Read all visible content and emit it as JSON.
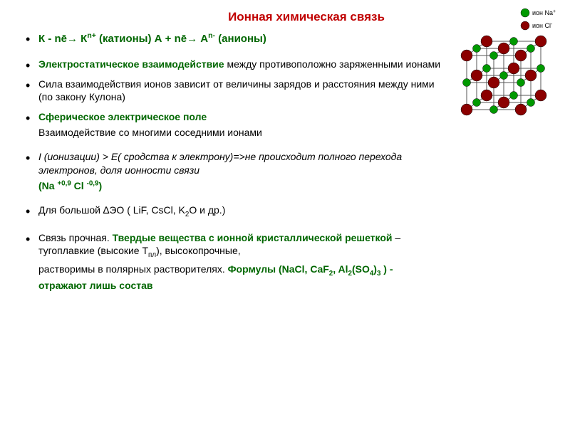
{
  "title": {
    "text": "Ионная химическая связь",
    "color": "#c00000",
    "fontsize": 17
  },
  "lines": [
    {
      "segments": [
        {
          "text": "К - nē→ К",
          "color": "#006600",
          "bold": true
        },
        {
          "text": "n+",
          "color": "#006600",
          "bold": true,
          "sup": true
        },
        {
          "text": " (катионы)",
          "color": "#006600",
          "bold": true
        },
        {
          "text": "        А + nē→ А",
          "color": "#006600",
          "bold": true
        },
        {
          "text": "n-",
          "color": "#006600",
          "bold": true,
          "sup": true
        },
        {
          "text": " (анионы)",
          "color": "#006600",
          "bold": true
        }
      ],
      "bullet": true,
      "fontsize": 15
    },
    {
      "spacer": true
    },
    {
      "segments": [
        {
          "text": "Электростатическое взаимодействие",
          "color": "#006600",
          "bold": true
        },
        {
          "text": " между противоположно заряженными ионами",
          "color": "#000000"
        }
      ],
      "bullet": true,
      "fontsize": 14
    },
    {
      "spacer": true,
      "small": true
    },
    {
      "segments": [
        {
          "text": "Сила взаимодействия ионов зависит от величины зарядов и расстояния между ними (по закону Кулона)",
          "color": "#000000"
        }
      ],
      "bullet": true,
      "fontsize": 14
    },
    {
      "spacer": true,
      "small": true
    },
    {
      "segments": [
        {
          "text": "Сферическое электрическое поле",
          "color": "#006600",
          "bold": true
        }
      ],
      "bullet": true,
      "fontsize": 14
    },
    {
      "segments": [
        {
          "text": " Взаимодействие со многими соседними ионами",
          "color": "#000000"
        }
      ],
      "bullet": false,
      "fontsize": 14
    },
    {
      "spacer": true
    },
    {
      "segments": [
        {
          "text": "I (ионизации)  >  Е( сродства к электрону)=>",
          "color": "#000000",
          "italic": true
        },
        {
          "text": "не происходит полного перехода электронов, доля ионности связи",
          "color": "#000000",
          "italic": true
        }
      ],
      "bullet": true,
      "fontsize": 14
    },
    {
      "segments": [
        {
          "text": " (Na ",
          "color": "#006600",
          "bold": true
        },
        {
          "text": "+0,9",
          "color": "#006600",
          "bold": true,
          "sup": true
        },
        {
          "text": " Cl ",
          "color": "#006600",
          "bold": true
        },
        {
          "text": "-0,9",
          "color": "#006600",
          "bold": true,
          "sup": true
        },
        {
          "text": ")",
          "color": "#006600",
          "bold": true
        }
      ],
      "bullet": false,
      "fontsize": 14
    },
    {
      "spacer": true
    },
    {
      "segments": [
        {
          "text": "Для большой ∆ЭО ( LiF, CsCl, K",
          "color": "#000000"
        },
        {
          "text": "2",
          "color": "#000000",
          "sub": true
        },
        {
          "text": "O и др.)",
          "color": "#000000"
        }
      ],
      "bullet": true,
      "fontsize": 14
    },
    {
      "spacer": true
    },
    {
      "segments": [
        {
          "text": "Связь прочная. ",
          "color": "#000000"
        },
        {
          "text": "Твердые вещества с ионной  кристаллической решеткой ",
          "color": "#006600",
          "bold": true
        },
        {
          "text": "– тугоплавкие (высокие Т",
          "color": "#000000"
        },
        {
          "text": "пл",
          "color": "#000000",
          "sub": true
        },
        {
          "text": "), высокопрочные,",
          "color": "#000000"
        }
      ],
      "bullet": true,
      "fontsize": 14
    },
    {
      "segments": [
        {
          "text": "растворимы в полярных растворителях. ",
          "color": "#000000"
        },
        {
          "text": "Формулы (NaCl, CaF",
          "color": "#006600",
          "bold": true
        },
        {
          "text": "2",
          "color": "#006600",
          "bold": true,
          "sub": true
        },
        {
          "text": ", Al",
          "color": "#006600",
          "bold": true
        },
        {
          "text": "2",
          "color": "#006600",
          "bold": true,
          "sub": true
        },
        {
          "text": "(SO",
          "color": "#006600",
          "bold": true
        },
        {
          "text": "4",
          "color": "#006600",
          "bold": true,
          "sub": true
        },
        {
          "text": ")",
          "color": "#006600",
          "bold": true
        },
        {
          "text": "3",
          "color": "#006600",
          "bold": true,
          "sub": true
        },
        {
          "text": " ) - отражают лишь состав",
          "color": "#006600",
          "bold": true
        }
      ],
      "bullet": false,
      "fontsize": 14
    }
  ],
  "lattice": {
    "na_color": "#009900",
    "cl_color": "#8b0000",
    "line_color": "#555555",
    "na_label": "ион Na",
    "na_charge": "+",
    "cl_label": "ион Сl",
    "cl_charge": "-"
  }
}
